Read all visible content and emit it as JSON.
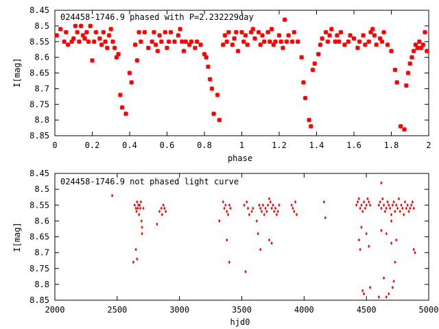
{
  "chart_data": [
    {
      "type": "scatter",
      "title": "024458-1746.9 phased with P=2.232229day",
      "xlabel": "phase",
      "ylabel": "I[mag]",
      "xlim": [
        0,
        2
      ],
      "ylim": [
        8.45,
        8.85
      ],
      "y_inverted": true,
      "grid": false,
      "marker": "star",
      "color": "#ff0000",
      "x_ticks": [
        0,
        0.2,
        0.4,
        0.6,
        0.8,
        1,
        1.2,
        1.4,
        1.6,
        1.8,
        2
      ],
      "x_tick_labels": [
        "0",
        "0.2",
        "0.4",
        "0.6",
        "0.8",
        "1",
        "1.2",
        "1.4",
        "1.6",
        "1.8",
        "2"
      ],
      "y_ticks": [
        8.45,
        8.5,
        8.55,
        8.6,
        8.65,
        8.7,
        8.75,
        8.8,
        8.85
      ],
      "y_tick_labels": [
        "8.45",
        "8.5",
        "8.55",
        "8.6",
        "8.65",
        "8.7",
        "8.75",
        "8.8",
        "8.85"
      ],
      "points": [
        [
          0.01,
          8.53
        ],
        [
          0.03,
          8.51
        ],
        [
          0.05,
          8.55
        ],
        [
          0.06,
          8.52
        ],
        [
          0.07,
          8.56
        ],
        [
          0.09,
          8.55
        ],
        [
          0.1,
          8.54
        ],
        [
          0.11,
          8.5
        ],
        [
          0.12,
          8.52
        ],
        [
          0.13,
          8.55
        ],
        [
          0.14,
          8.5
        ],
        [
          0.15,
          8.53
        ],
        [
          0.16,
          8.54
        ],
        [
          0.17,
          8.52
        ],
        [
          0.18,
          8.55
        ],
        [
          0.19,
          8.5
        ],
        [
          0.2,
          8.61
        ],
        [
          0.21,
          8.55
        ],
        [
          0.22,
          8.52
        ],
        [
          0.24,
          8.54
        ],
        [
          0.25,
          8.56
        ],
        [
          0.26,
          8.52
        ],
        [
          0.27,
          8.55
        ],
        [
          0.28,
          8.57
        ],
        [
          0.29,
          8.53
        ],
        [
          0.3,
          8.51
        ],
        [
          0.31,
          8.55
        ],
        [
          0.32,
          8.57
        ],
        [
          0.33,
          8.6
        ],
        [
          0.34,
          8.59
        ],
        [
          0.35,
          8.72
        ],
        [
          0.36,
          8.76
        ],
        [
          0.38,
          8.78
        ],
        [
          0.4,
          8.65
        ],
        [
          0.41,
          8.68
        ],
        [
          0.43,
          8.56
        ],
        [
          0.44,
          8.61
        ],
        [
          0.45,
          8.52
        ],
        [
          0.46,
          8.55
        ],
        [
          0.48,
          8.52
        ],
        [
          0.5,
          8.57
        ],
        [
          0.52,
          8.55
        ],
        [
          0.53,
          8.52
        ],
        [
          0.54,
          8.56
        ],
        [
          0.55,
          8.58
        ],
        [
          0.56,
          8.53
        ],
        [
          0.57,
          8.55
        ],
        [
          0.59,
          8.52
        ],
        [
          0.6,
          8.57
        ],
        [
          0.61,
          8.55
        ],
        [
          0.62,
          8.52
        ],
        [
          0.64,
          8.55
        ],
        [
          0.66,
          8.53
        ],
        [
          0.67,
          8.51
        ],
        [
          0.68,
          8.55
        ],
        [
          0.69,
          8.58
        ],
        [
          0.7,
          8.55
        ],
        [
          0.72,
          8.56
        ],
        [
          0.73,
          8.55
        ],
        [
          0.75,
          8.57
        ],
        [
          0.76,
          8.55
        ],
        [
          0.78,
          8.56
        ],
        [
          0.8,
          8.59
        ],
        [
          0.81,
          8.6
        ],
        [
          0.82,
          8.63
        ],
        [
          0.83,
          8.67
        ],
        [
          0.84,
          8.7
        ],
        [
          0.85,
          8.78
        ],
        [
          0.87,
          8.72
        ],
        [
          0.88,
          8.8
        ],
        [
          0.9,
          8.56
        ],
        [
          0.91,
          8.53
        ],
        [
          0.92,
          8.55
        ],
        [
          0.93,
          8.52
        ],
        [
          0.95,
          8.56
        ],
        [
          0.96,
          8.54
        ],
        [
          0.97,
          8.52
        ],
        [
          0.98,
          8.58
        ],
        [
          1.0,
          8.52
        ],
        [
          1.01,
          8.55
        ],
        [
          1.02,
          8.53
        ],
        [
          1.03,
          8.56
        ],
        [
          1.05,
          8.52
        ],
        [
          1.06,
          8.51
        ],
        [
          1.07,
          8.54
        ],
        [
          1.09,
          8.52
        ],
        [
          1.1,
          8.56
        ],
        [
          1.11,
          8.53
        ],
        [
          1.12,
          8.55
        ],
        [
          1.14,
          8.52
        ],
        [
          1.15,
          8.55
        ],
        [
          1.16,
          8.51
        ],
        [
          1.17,
          8.56
        ],
        [
          1.18,
          8.55
        ],
        [
          1.2,
          8.53
        ],
        [
          1.21,
          8.55
        ],
        [
          1.22,
          8.57
        ],
        [
          1.23,
          8.48
        ],
        [
          1.24,
          8.55
        ],
        [
          1.25,
          8.53
        ],
        [
          1.27,
          8.55
        ],
        [
          1.28,
          8.52
        ],
        [
          1.3,
          8.55
        ],
        [
          1.32,
          8.6
        ],
        [
          1.33,
          8.68
        ],
        [
          1.34,
          8.73
        ],
        [
          1.36,
          8.8
        ],
        [
          1.37,
          8.82
        ],
        [
          1.38,
          8.64
        ],
        [
          1.39,
          8.62
        ],
        [
          1.41,
          8.59
        ],
        [
          1.42,
          8.56
        ],
        [
          1.43,
          8.54
        ],
        [
          1.45,
          8.52
        ],
        [
          1.46,
          8.55
        ],
        [
          1.47,
          8.53
        ],
        [
          1.48,
          8.51
        ],
        [
          1.5,
          8.55
        ],
        [
          1.51,
          8.53
        ],
        [
          1.52,
          8.55
        ],
        [
          1.53,
          8.52
        ],
        [
          1.55,
          8.56
        ],
        [
          1.57,
          8.55
        ],
        [
          1.58,
          8.53
        ],
        [
          1.6,
          8.54
        ],
        [
          1.62,
          8.57
        ],
        [
          1.63,
          8.55
        ],
        [
          1.65,
          8.53
        ],
        [
          1.66,
          8.56
        ],
        [
          1.68,
          8.55
        ],
        [
          1.69,
          8.52
        ],
        [
          1.7,
          8.51
        ],
        [
          1.71,
          8.53
        ],
        [
          1.72,
          8.56
        ],
        [
          1.74,
          8.54
        ],
        [
          1.75,
          8.55
        ],
        [
          1.76,
          8.52
        ],
        [
          1.78,
          8.56
        ],
        [
          1.8,
          8.58
        ],
        [
          1.82,
          8.64
        ],
        [
          1.83,
          8.68
        ],
        [
          1.85,
          8.82
        ],
        [
          1.87,
          8.83
        ],
        [
          1.88,
          8.69
        ],
        [
          1.89,
          8.65
        ],
        [
          1.9,
          8.62
        ],
        [
          1.91,
          8.6
        ],
        [
          1.92,
          8.58
        ],
        [
          1.93,
          8.56
        ],
        [
          1.94,
          8.57
        ],
        [
          1.95,
          8.55
        ],
        [
          1.96,
          8.57
        ],
        [
          1.97,
          8.56
        ],
        [
          1.98,
          8.52
        ],
        [
          1.99,
          8.58
        ]
      ]
    },
    {
      "type": "scatter",
      "title": "024458-1746.9 not phased light curve",
      "xlabel": "hjd0",
      "ylabel": "I[mag]",
      "xlim": [
        2000,
        5000
      ],
      "ylim": [
        8.45,
        8.85
      ],
      "y_inverted": true,
      "grid": false,
      "marker": "diamond",
      "color": "#ff0000",
      "x_ticks": [
        2000,
        2500,
        3000,
        3500,
        4000,
        4500,
        5000
      ],
      "x_tick_labels": [
        "2000",
        "2500",
        "3000",
        "3500",
        "4000",
        "4500",
        "5000"
      ],
      "y_ticks": [
        8.45,
        8.5,
        8.55,
        8.6,
        8.65,
        8.7,
        8.75,
        8.8,
        8.85
      ],
      "y_tick_labels": [
        "8.45",
        "8.5",
        "8.55",
        "8.6",
        "8.65",
        "8.7",
        "8.75",
        "8.8",
        "8.85"
      ],
      "points": [
        [
          2460,
          8.52
        ],
        [
          2640,
          8.55
        ],
        [
          2650,
          8.56
        ],
        [
          2655,
          8.57
        ],
        [
          2660,
          8.54
        ],
        [
          2665,
          8.56
        ],
        [
          2670,
          8.55
        ],
        [
          2675,
          8.58
        ],
        [
          2680,
          8.55
        ],
        [
          2685,
          8.56
        ],
        [
          2690,
          8.54
        ],
        [
          2695,
          8.6
        ],
        [
          2700,
          8.62
        ],
        [
          2710,
          8.56
        ],
        [
          2630,
          8.73
        ],
        [
          2650,
          8.69
        ],
        [
          2660,
          8.72
        ],
        [
          2700,
          8.64
        ],
        [
          2820,
          8.61
        ],
        [
          2840,
          8.57
        ],
        [
          2855,
          8.56
        ],
        [
          2860,
          8.58
        ],
        [
          2870,
          8.55
        ],
        [
          2880,
          8.56
        ],
        [
          2890,
          8.57
        ],
        [
          3320,
          8.6
        ],
        [
          3350,
          8.54
        ],
        [
          3360,
          8.56
        ],
        [
          3370,
          8.55
        ],
        [
          3380,
          8.57
        ],
        [
          3390,
          8.58
        ],
        [
          3400,
          8.55
        ],
        [
          3410,
          8.56
        ],
        [
          3380,
          8.66
        ],
        [
          3400,
          8.73
        ],
        [
          3530,
          8.76
        ],
        [
          3520,
          8.55
        ],
        [
          3540,
          8.54
        ],
        [
          3550,
          8.56
        ],
        [
          3560,
          8.58
        ],
        [
          3580,
          8.57
        ],
        [
          3590,
          8.56
        ],
        [
          3620,
          8.6
        ],
        [
          3640,
          8.55
        ],
        [
          3650,
          8.56
        ],
        [
          3660,
          8.57
        ],
        [
          3670,
          8.55
        ],
        [
          3680,
          8.58
        ],
        [
          3690,
          8.56
        ],
        [
          3700,
          8.57
        ],
        [
          3710,
          8.55
        ],
        [
          3720,
          8.53
        ],
        [
          3730,
          8.54
        ],
        [
          3740,
          8.56
        ],
        [
          3750,
          8.55
        ],
        [
          3760,
          8.57
        ],
        [
          3770,
          8.56
        ],
        [
          3780,
          8.58
        ],
        [
          3790,
          8.57
        ],
        [
          3800,
          8.55
        ],
        [
          3630,
          8.64
        ],
        [
          3650,
          8.69
        ],
        [
          3720,
          8.66
        ],
        [
          3740,
          8.67
        ],
        [
          3900,
          8.55
        ],
        [
          3910,
          8.56
        ],
        [
          3920,
          8.57
        ],
        [
          3930,
          8.54
        ],
        [
          3940,
          8.58
        ],
        [
          4160,
          8.54
        ],
        [
          4170,
          8.59
        ],
        [
          4420,
          8.55
        ],
        [
          4430,
          8.54
        ],
        [
          4440,
          8.53
        ],
        [
          4450,
          8.56
        ],
        [
          4460,
          8.55
        ],
        [
          4470,
          8.57
        ],
        [
          4480,
          8.54
        ],
        [
          4490,
          8.56
        ],
        [
          4500,
          8.55
        ],
        [
          4510,
          8.53
        ],
        [
          4520,
          8.54
        ],
        [
          4530,
          8.55
        ],
        [
          4440,
          8.66
        ],
        [
          4450,
          8.69
        ],
        [
          4460,
          8.62
        ],
        [
          4470,
          8.82
        ],
        [
          4480,
          8.83
        ],
        [
          4500,
          8.64
        ],
        [
          4520,
          8.68
        ],
        [
          4530,
          8.81
        ],
        [
          4600,
          8.55
        ],
        [
          4610,
          8.54
        ],
        [
          4620,
          8.56
        ],
        [
          4630,
          8.53
        ],
        [
          4640,
          8.55
        ],
        [
          4650,
          8.57
        ],
        [
          4660,
          8.56
        ],
        [
          4670,
          8.54
        ],
        [
          4680,
          8.55
        ],
        [
          4690,
          8.56
        ],
        [
          4700,
          8.58
        ],
        [
          4710,
          8.55
        ],
        [
          4720,
          8.54
        ],
        [
          4730,
          8.57
        ],
        [
          4740,
          8.55
        ],
        [
          4750,
          8.56
        ],
        [
          4760,
          8.53
        ],
        [
          4770,
          8.57
        ],
        [
          4780,
          8.55
        ],
        [
          4790,
          8.56
        ],
        [
          4800,
          8.58
        ],
        [
          4810,
          8.54
        ],
        [
          4820,
          8.56
        ],
        [
          4830,
          8.55
        ],
        [
          4840,
          8.57
        ],
        [
          4850,
          8.56
        ],
        [
          4860,
          8.55
        ],
        [
          4870,
          8.54
        ],
        [
          4880,
          8.56
        ],
        [
          4600,
          8.84
        ],
        [
          4620,
          8.63
        ],
        [
          4640,
          8.78
        ],
        [
          4660,
          8.84
        ],
        [
          4680,
          8.83
        ],
        [
          4700,
          8.67
        ],
        [
          4710,
          8.81
        ],
        [
          4720,
          8.79
        ],
        [
          4730,
          8.73
        ],
        [
          4740,
          8.66
        ],
        [
          4620,
          8.48
        ],
        [
          4660,
          8.64
        ],
        [
          4700,
          8.6
        ],
        [
          4880,
          8.69
        ],
        [
          4890,
          8.7
        ]
      ]
    }
  ]
}
